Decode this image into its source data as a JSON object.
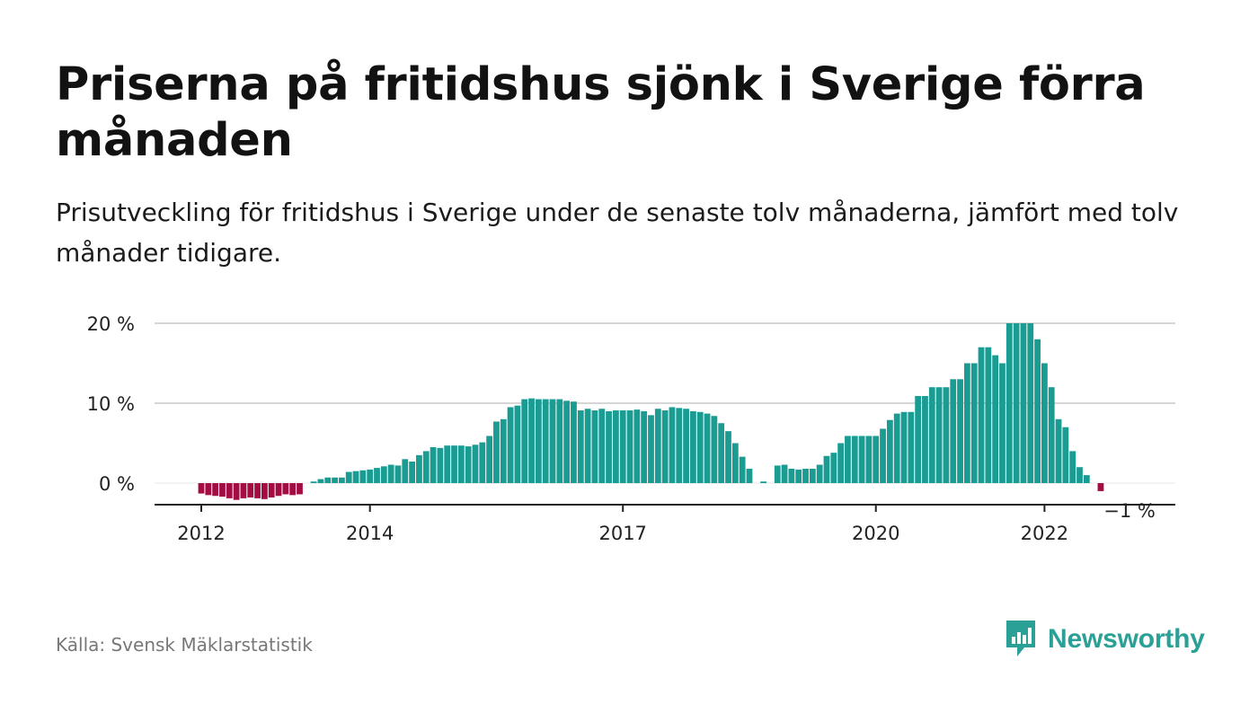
{
  "title": "Priserna på fritidshus sjönk i Sverige förra månaden",
  "subtitle": "Prisutveckling för fritidshus i Sverige under de senaste tolv månaderna, jämfört med tolv månader tidigare.",
  "source": "Källa: Svensk Mäklarstatistik",
  "brand": {
    "name": "Newsworthy",
    "icon": "newsworthy-logo-icon",
    "color": "#2aa096"
  },
  "colors": {
    "positive": "#1a9c93",
    "negative": "#a30d44",
    "grid": "#d6d6d6",
    "axis": "#222222"
  },
  "chart_data": {
    "type": "bar",
    "title": "Priserna på fritidshus sjönk i Sverige förra månaden",
    "subtitle": "Prisutveckling för fritidshus i Sverige under de senaste tolv månaderna, jämfört med tolv månader tidigare.",
    "xlabel": "",
    "ylabel": "",
    "start": "2012-01",
    "ylim": [
      -2.5,
      20
    ],
    "yticks": [
      {
        "value": 0,
        "label": "0 %"
      },
      {
        "value": 10,
        "label": "10 %"
      },
      {
        "value": 20,
        "label": "20 %"
      }
    ],
    "xticks": [
      {
        "date": "2012-01",
        "label": "2012"
      },
      {
        "date": "2014-01",
        "label": "2014"
      },
      {
        "date": "2017-01",
        "label": "2017"
      },
      {
        "date": "2020-01",
        "label": "2020"
      },
      {
        "date": "2022-01",
        "label": "2022"
      }
    ],
    "grid": true,
    "series": [
      {
        "values": [
          -1.3,
          -1.5,
          -1.6,
          -1.7,
          -1.9,
          -2.1,
          -1.9,
          -1.8,
          -1.9,
          -2.0,
          -1.8,
          -1.6,
          -1.4,
          -1.5,
          -1.4,
          null,
          0.2,
          0.5,
          0.7,
          0.7,
          0.7,
          1.4,
          1.5,
          1.6,
          1.7,
          1.9,
          2.1,
          2.3,
          2.2,
          3.0,
          2.7,
          3.5,
          4.0,
          4.5,
          4.4,
          4.7,
          4.7,
          4.7,
          4.6,
          4.8,
          5.1,
          5.9,
          7.7,
          8.0,
          9.5,
          9.7,
          10.5,
          10.6,
          10.5,
          10.5,
          10.5,
          10.5,
          10.3,
          10.2,
          9.1,
          9.3,
          9.1,
          9.3,
          9.0,
          9.1,
          9.1,
          9.1,
          9.2,
          9.0,
          8.5,
          9.3,
          9.1,
          9.5,
          9.4,
          9.3,
          9.0,
          8.9,
          8.7,
          8.4,
          7.5,
          6.5,
          5.0,
          3.3,
          1.8,
          null,
          0.2,
          null,
          2.2,
          2.3,
          1.8,
          1.7,
          1.8,
          1.8,
          2.3,
          3.4,
          3.8,
          5.0,
          5.9,
          5.9,
          5.9,
          5.9,
          5.9,
          6.8,
          7.9,
          8.7,
          8.9,
          8.9,
          10.9,
          10.9,
          12.0,
          12.0,
          12.0,
          13.0,
          13.0,
          15.0,
          15.0,
          17.0,
          17.0,
          16.0,
          15.0,
          20.0,
          20.0,
          20.0,
          20.0,
          18.0,
          15.0,
          12.0,
          8.0,
          7.0,
          4.0,
          2.0,
          1.0,
          null,
          -1.0
        ]
      }
    ],
    "annotations": [
      {
        "date": "2023-01",
        "text": "−1 %"
      }
    ]
  }
}
